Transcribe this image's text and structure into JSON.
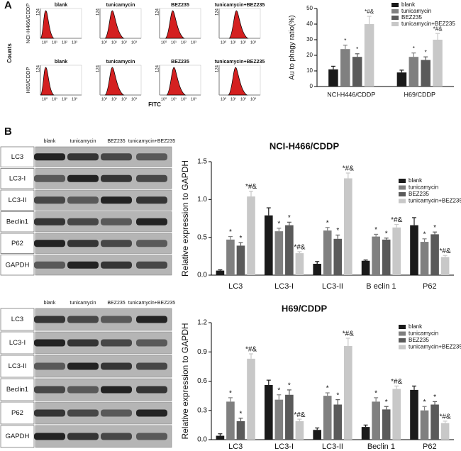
{
  "panel_labels": [
    "A",
    "B"
  ],
  "flow": {
    "rows": [
      "NCI-H466/CDDP",
      "H69/CDDP"
    ],
    "columns": [
      "blank",
      "tunicamycin",
      "BEZ235",
      "tunicamycin+BEZ235"
    ],
    "ytick": "124",
    "xticks": [
      "10⁰",
      "10¹",
      "10²",
      "10³"
    ],
    "ylabel": "Counts",
    "xlabel": "FITC"
  },
  "blots": [
    {
      "columns": [
        "blank",
        "tunicamycin",
        "BEZ235",
        "tunicamycin+BEZ235"
      ],
      "rows": [
        "LC3",
        "LC3-I",
        "LC3-II",
        "Beclin1",
        "P62",
        "GAPDH"
      ]
    },
    {
      "columns": [
        "blank",
        "tunicamycin",
        "BEZ235",
        "tunicamycin+BEZ235"
      ],
      "rows": [
        "LC3",
        "LC3-I",
        "LC3-II",
        "Beclin1",
        "P62",
        "GAPDH"
      ]
    }
  ],
  "chart_data": [
    {
      "type": "bar",
      "ylabel": "Au to phagy ratio(%)",
      "categories": [
        "NCI-H446/CDDP",
        "H69/CDDP"
      ],
      "ylim": [
        0,
        50
      ],
      "yticks": [
        0,
        10,
        20,
        30,
        40,
        50
      ],
      "series": [
        {
          "name": "blank",
          "color": "#1a1a1a",
          "values": [
            11,
            9
          ],
          "errors": [
            2,
            1.5
          ]
        },
        {
          "name": "tunicamycin",
          "color": "#808080",
          "values": [
            24,
            19
          ],
          "errors": [
            2.5,
            2.5
          ],
          "annotations": [
            "*",
            "*"
          ]
        },
        {
          "name": "BEZ235",
          "color": "#5a5a5a",
          "values": [
            19,
            17
          ],
          "errors": [
            2,
            2
          ],
          "annotations": [
            "*",
            "*"
          ]
        },
        {
          "name": "tunicamycin+BEZ235",
          "color": "#c8c8c8",
          "values": [
            40,
            30
          ],
          "errors": [
            5,
            4
          ],
          "annotations": [
            "*#&",
            "*#&"
          ]
        }
      ]
    },
    {
      "type": "bar",
      "title": "NCI-H466/CDDP",
      "ylabel": "Relative expression  to GAPDH",
      "categories": [
        "LC3",
        "LC3-I",
        "LC3-II",
        "B eclin 1",
        "P62"
      ],
      "ylim": [
        0,
        1.5
      ],
      "yticks": [
        {
          "value": 0,
          "label": "0.0"
        },
        0.5,
        {
          "value": 1,
          "label": "1.0"
        },
        1.5
      ],
      "series": [
        {
          "name": "blank",
          "color": "#1a1a1a",
          "values": [
            0.06,
            0.79,
            0.15,
            0.19,
            0.66
          ],
          "errors": [
            0.01,
            0.1,
            0.03,
            0.01,
            0.1
          ]
        },
        {
          "name": "tunicamycin",
          "color": "#808080",
          "values": [
            0.47,
            0.58,
            0.59,
            0.51,
            0.44
          ],
          "errors": [
            0.04,
            0.04,
            0.04,
            0.03,
            0.04
          ],
          "annotations": [
            "*",
            "*",
            "*",
            "*",
            "*"
          ]
        },
        {
          "name": "BEZ235",
          "color": "#5a5a5a",
          "values": [
            0.39,
            0.66,
            0.48,
            0.47,
            0.54
          ],
          "errors": [
            0.04,
            0.04,
            0.05,
            0.02,
            0.03
          ],
          "annotations": [
            "*",
            "*",
            "*",
            "*",
            "*"
          ]
        },
        {
          "name": "tunicamycin+BEZ235",
          "color": "#c8c8c8",
          "values": [
            1.04,
            0.29,
            1.28,
            0.63,
            0.24
          ],
          "errors": [
            0.07,
            0.02,
            0.07,
            0.04,
            0.02
          ],
          "annotations": [
            "*#&",
            "*#&",
            "*#&",
            "*#&",
            "*#&"
          ]
        }
      ]
    },
    {
      "type": "bar",
      "title": "H69/CDDP",
      "ylabel": "Relative expression  to GAPDH",
      "categories": [
        "LC3",
        "LC3-I",
        "LC3-II",
        "Beclin 1",
        "P62"
      ],
      "ylim": [
        0,
        1.2
      ],
      "yticks": [
        {
          "value": 0,
          "label": "0.0"
        },
        0.3,
        0.6,
        0.9,
        1.2
      ],
      "series": [
        {
          "name": "blank",
          "color": "#1a1a1a",
          "values": [
            0.04,
            0.56,
            0.1,
            0.13,
            0.51
          ],
          "errors": [
            0.02,
            0.05,
            0.02,
            0.02,
            0.04
          ]
        },
        {
          "name": "tunicamycin",
          "color": "#808080",
          "values": [
            0.39,
            0.41,
            0.45,
            0.39,
            0.3
          ],
          "errors": [
            0.04,
            0.05,
            0.03,
            0.04,
            0.04
          ],
          "annotations": [
            "*",
            "*",
            "*",
            "*",
            "*"
          ]
        },
        {
          "name": "BEZ235",
          "color": "#5a5a5a",
          "values": [
            0.19,
            0.46,
            0.36,
            0.31,
            0.36
          ],
          "errors": [
            0.03,
            0.05,
            0.05,
            0.03,
            0.03
          ],
          "annotations": [
            "*",
            "*",
            "*",
            "*",
            "*"
          ]
        },
        {
          "name": "tunicamycin+BEZ235",
          "color": "#c8c8c8",
          "values": [
            0.83,
            0.19,
            0.96,
            0.52,
            0.17
          ],
          "errors": [
            0.05,
            0.02,
            0.08,
            0.03,
            0.02
          ],
          "annotations": [
            "*#&",
            "*#&",
            "*#&",
            "*#&",
            "*#&"
          ]
        }
      ]
    }
  ]
}
